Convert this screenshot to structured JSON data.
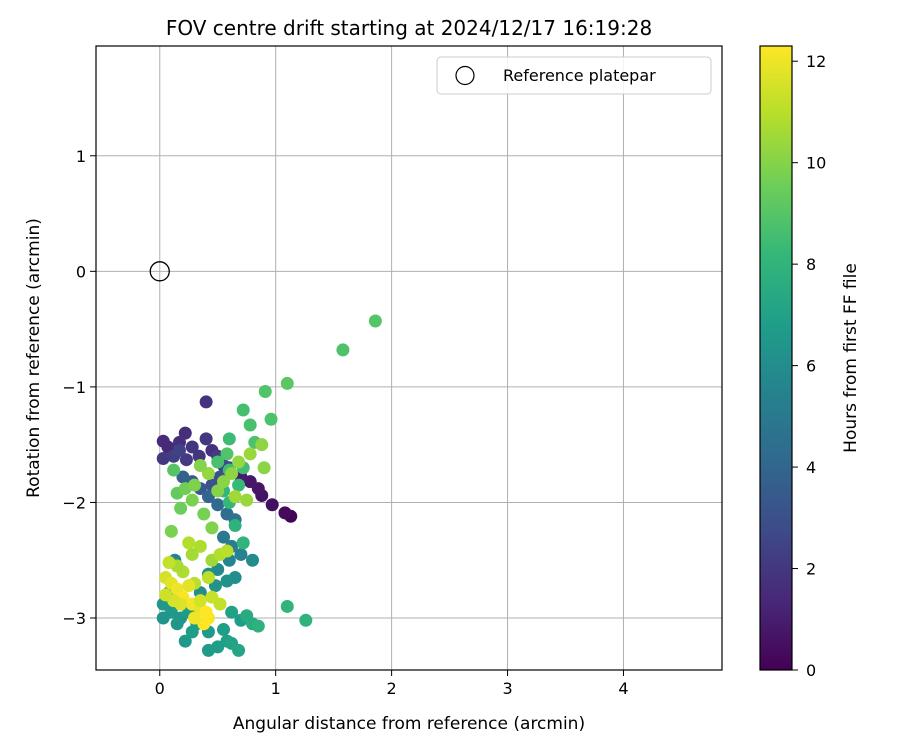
{
  "chart_data": {
    "type": "scatter",
    "title": "FOV centre drift starting at 2024/12/17 16:19:28",
    "xlabel": "Angular distance from reference (arcmin)",
    "ylabel": "Rotation from reference (arcmin)",
    "xlim": [
      -0.55,
      4.85
    ],
    "ylim": [
      -3.45,
      1.95
    ],
    "x_ticks": [
      0,
      1,
      2,
      3,
      4
    ],
    "x_tick_labels": [
      "0",
      "1",
      "2",
      "3",
      "4"
    ],
    "y_ticks": [
      1,
      0,
      -1,
      -2,
      -3
    ],
    "y_tick_labels": [
      "1",
      "0",
      "−1",
      "−2",
      "−3"
    ],
    "grid": true,
    "legend": {
      "placement": "top-right",
      "entries": [
        {
          "label": "Reference platepar",
          "marker": "open-circle"
        }
      ]
    },
    "reference_point": {
      "x": 0,
      "y": 0
    },
    "colorbar": {
      "label": "Hours from first FF file",
      "colormap": "viridis",
      "range": [
        0,
        12.3
      ],
      "ticks": [
        0,
        2,
        4,
        6,
        8,
        10,
        12
      ],
      "tick_labels": [
        "0",
        "2",
        "4",
        "6",
        "8",
        "10",
        "12"
      ]
    },
    "points": [
      [
        1.13,
        -2.12,
        0.1
      ],
      [
        1.08,
        -2.09,
        0.3
      ],
      [
        0.97,
        -2.02,
        0.5
      ],
      [
        0.88,
        -1.94,
        0.6
      ],
      [
        0.85,
        -1.88,
        0.7
      ],
      [
        0.78,
        -1.82,
        0.8
      ],
      [
        0.7,
        -1.78,
        0.9
      ],
      [
        0.4,
        -1.13,
        1.8
      ],
      [
        0.22,
        -1.4,
        1.6
      ],
      [
        0.03,
        -1.47,
        1.5
      ],
      [
        0.07,
        -1.52,
        1.4
      ],
      [
        0.17,
        -1.48,
        1.7
      ],
      [
        0.28,
        -1.52,
        1.9
      ],
      [
        0.4,
        -1.45,
        2.0
      ],
      [
        0.45,
        -1.55,
        1.7
      ],
      [
        0.34,
        -1.6,
        1.9
      ],
      [
        0.23,
        -1.63,
        2.1
      ],
      [
        0.12,
        -1.6,
        2.3
      ],
      [
        0.03,
        -1.62,
        2.0
      ],
      [
        0.17,
        -1.55,
        2.4
      ],
      [
        0.5,
        -1.6,
        2.2
      ],
      [
        0.55,
        -1.68,
        2.5
      ],
      [
        0.6,
        -1.7,
        2.8
      ],
      [
        0.52,
        -1.78,
        3.0
      ],
      [
        0.45,
        -1.85,
        3.2
      ],
      [
        0.35,
        -1.88,
        3.4
      ],
      [
        0.28,
        -1.82,
        3.6
      ],
      [
        0.2,
        -1.78,
        3.8
      ],
      [
        0.42,
        -1.95,
        4.0
      ],
      [
        0.5,
        -2.02,
        4.2
      ],
      [
        0.58,
        -2.1,
        4.4
      ],
      [
        0.65,
        -2.15,
        4.6
      ],
      [
        0.55,
        -2.3,
        5.0
      ],
      [
        0.62,
        -2.38,
        5.2
      ],
      [
        0.7,
        -2.45,
        5.4
      ],
      [
        0.6,
        -2.5,
        5.6
      ],
      [
        0.5,
        -2.58,
        5.8
      ],
      [
        0.42,
        -2.62,
        6.0
      ],
      [
        0.58,
        -2.68,
        6.2
      ],
      [
        0.8,
        -2.5,
        5.9
      ],
      [
        0.65,
        -2.65,
        6.1
      ],
      [
        0.48,
        -2.72,
        6.3
      ],
      [
        0.35,
        -2.78,
        6.0
      ],
      [
        0.13,
        -2.5,
        5.5
      ],
      [
        0.08,
        -2.78,
        6.4
      ],
      [
        0.03,
        -2.88,
        6.5
      ],
      [
        0.1,
        -2.95,
        6.6
      ],
      [
        0.18,
        -3.0,
        6.5
      ],
      [
        0.25,
        -2.95,
        6.7
      ],
      [
        0.32,
        -3.05,
        6.8
      ],
      [
        0.42,
        -3.12,
        6.6
      ],
      [
        0.55,
        -3.1,
        6.9
      ],
      [
        0.62,
        -2.95,
        7.0
      ],
      [
        0.7,
        -3.02,
        6.8
      ],
      [
        0.58,
        -3.2,
        6.9
      ],
      [
        0.62,
        -3.22,
        7.1
      ],
      [
        0.68,
        -3.28,
        7.2
      ],
      [
        0.42,
        -3.28,
        6.7
      ],
      [
        0.5,
        -3.25,
        6.8
      ],
      [
        0.22,
        -3.2,
        6.6
      ],
      [
        0.15,
        -3.05,
        6.5
      ],
      [
        0.03,
        -3.0,
        6.4
      ],
      [
        0.28,
        -3.12,
        6.8
      ],
      [
        0.8,
        -3.05,
        7.6
      ],
      [
        0.85,
        -3.07,
        7.8
      ],
      [
        0.75,
        -2.98,
        7.5
      ],
      [
        1.1,
        -2.9,
        8.0
      ],
      [
        1.26,
        -3.02,
        7.9
      ],
      [
        0.72,
        -2.35,
        8.0
      ],
      [
        0.65,
        -2.2,
        7.9
      ],
      [
        0.6,
        -2.0,
        8.2
      ],
      [
        0.68,
        -1.85,
        8.3
      ],
      [
        0.72,
        -1.7,
        8.5
      ],
      [
        0.6,
        -1.45,
        8.4
      ],
      [
        0.72,
        -1.2,
        8.6
      ],
      [
        0.78,
        -1.33,
        8.7
      ],
      [
        0.82,
        -1.48,
        8.8
      ],
      [
        0.58,
        -1.58,
        8.9
      ],
      [
        0.6,
        -1.72,
        8.5
      ],
      [
        0.5,
        -1.65,
        8.7
      ],
      [
        0.55,
        -1.9,
        8.1
      ],
      [
        0.91,
        -1.04,
        8.9
      ],
      [
        0.96,
        -1.28,
        8.8
      ],
      [
        1.1,
        -0.97,
        9.1
      ],
      [
        1.58,
        -0.68,
        8.8
      ],
      [
        1.86,
        -0.43,
        9.0
      ],
      [
        0.12,
        -1.72,
        9.0
      ],
      [
        0.15,
        -1.92,
        9.3
      ],
      [
        0.18,
        -2.05,
        9.5
      ],
      [
        0.22,
        -1.88,
        9.6
      ],
      [
        0.28,
        -1.98,
        9.8
      ],
      [
        0.38,
        -2.1,
        9.7
      ],
      [
        0.45,
        -2.22,
        9.9
      ],
      [
        0.5,
        -1.9,
        10.0
      ],
      [
        0.55,
        -1.82,
        10.1
      ],
      [
        0.62,
        -1.75,
        10.2
      ],
      [
        0.68,
        -1.65,
        10.3
      ],
      [
        0.78,
        -1.58,
        10.4
      ],
      [
        0.88,
        -1.5,
        10.2
      ],
      [
        0.9,
        -1.7,
        10.1
      ],
      [
        0.75,
        -1.98,
        10.4
      ],
      [
        0.65,
        -1.95,
        10.5
      ],
      [
        0.42,
        -1.75,
        10.3
      ],
      [
        0.35,
        -1.68,
        10.0
      ],
      [
        0.3,
        -1.85,
        9.9
      ],
      [
        0.1,
        -2.25,
        9.8
      ],
      [
        0.28,
        -2.45,
        10.6
      ],
      [
        0.35,
        -2.38,
        10.8
      ],
      [
        0.45,
        -2.5,
        10.5
      ],
      [
        0.52,
        -2.45,
        10.9
      ],
      [
        0.58,
        -2.42,
        11.0
      ],
      [
        0.42,
        -2.65,
        11.1
      ],
      [
        0.3,
        -2.7,
        11.0
      ],
      [
        0.2,
        -2.6,
        10.8
      ],
      [
        0.15,
        -2.55,
        10.7
      ],
      [
        0.08,
        -2.52,
        11.2
      ],
      [
        0.25,
        -2.35,
        10.9
      ],
      [
        0.05,
        -2.65,
        11.5
      ],
      [
        0.1,
        -2.7,
        11.8
      ],
      [
        0.15,
        -2.75,
        12.0
      ],
      [
        0.2,
        -2.82,
        12.2
      ],
      [
        0.28,
        -2.88,
        12.1
      ],
      [
        0.35,
        -2.92,
        11.9
      ],
      [
        0.42,
        -3.0,
        12.2
      ],
      [
        0.38,
        -3.05,
        12.3
      ],
      [
        0.3,
        -3.0,
        12.0
      ],
      [
        0.18,
        -2.88,
        11.7
      ],
      [
        0.12,
        -2.85,
        11.6
      ],
      [
        0.05,
        -2.8,
        11.4
      ],
      [
        0.25,
        -2.72,
        11.8
      ],
      [
        0.35,
        -2.85,
        11.5
      ],
      [
        0.45,
        -2.82,
        11.3
      ],
      [
        0.52,
        -2.88,
        11.2
      ],
      [
        0.4,
        -2.95,
        12.3
      ]
    ]
  }
}
